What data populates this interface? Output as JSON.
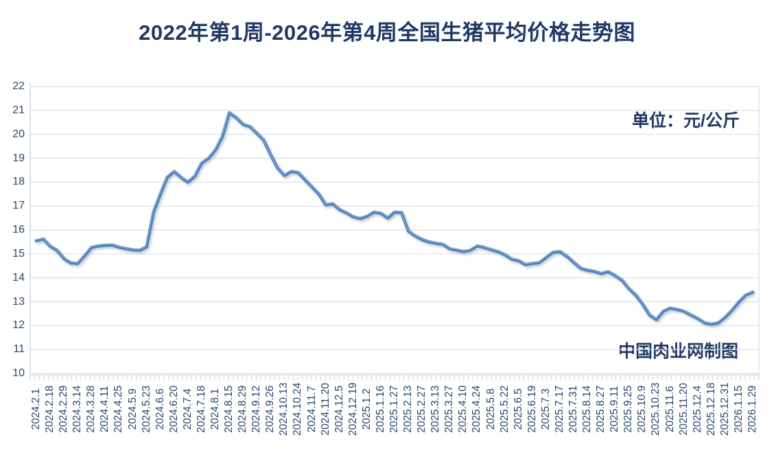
{
  "page": {
    "title": "2022年第1周-2026年第4周全国生猪平均价格走势图",
    "unit_label": "单位：元/公斤",
    "credit_label": "中国肉业网制图"
  },
  "chart_data": {
    "type": "line",
    "title": "2022年第1周-2026年第4周全国生猪平均价格走势图",
    "xlabel": "",
    "ylabel": "元/公斤",
    "ylim": [
      10,
      22
    ],
    "y_ticks": [
      10,
      11,
      12,
      13,
      14,
      15,
      16,
      17,
      18,
      19,
      20,
      21,
      22
    ],
    "grid": true,
    "legend": "none",
    "note": "Weekly data; x-axis labels are printed for every second data point, rotated 90°.",
    "x_tick_labels": [
      "2024.2.1",
      "2024.2.18",
      "2024.2.29",
      "2024.3.14",
      "2024.3.28",
      "2024.4.11",
      "2024.4.25",
      "2024.5.9",
      "2024.5.23",
      "2024.6.6",
      "2024.6.20",
      "2024.7.4",
      "2024.7.18",
      "2024.8.1",
      "2024.8.15",
      "2024.8.29",
      "2024.9.12",
      "2024.9.26",
      "2024.10.13",
      "2024.10.24",
      "2024.11.7",
      "2024.11.20",
      "2024.12.5",
      "2024.12.19",
      "2025.1.2",
      "2025.1.16",
      "2025.1.27",
      "2025.2.13",
      "2025.2.27",
      "2025.3.13",
      "2025.3.27",
      "2025.4.10",
      "2025.4.24",
      "2025.5.8",
      "2025.5.22",
      "2025.6.5",
      "2025.6.19",
      "2025.7.3",
      "2025.7.17",
      "2025.7.31",
      "2025.8.14",
      "2025.8.27",
      "2025.9.11",
      "2025.9.25",
      "2025.10.9",
      "2025.10.23",
      "2025.11.6",
      "2025.11.20",
      "2025.12.4",
      "2025.12.18",
      "2025.12.31",
      "2026.1.15",
      "2026.1.29"
    ],
    "series": [
      {
        "name": "全国生猪平均价格",
        "values": [
          15.55,
          15.62,
          15.32,
          15.15,
          14.8,
          14.62,
          14.6,
          14.92,
          15.27,
          15.33,
          15.36,
          15.37,
          15.28,
          15.22,
          15.17,
          15.15,
          15.3,
          16.75,
          17.5,
          18.2,
          18.45,
          18.2,
          18.0,
          18.25,
          18.8,
          19.0,
          19.35,
          19.9,
          20.9,
          20.7,
          20.42,
          20.32,
          20.05,
          19.75,
          19.15,
          18.6,
          18.28,
          18.45,
          18.4,
          18.1,
          17.8,
          17.5,
          17.05,
          17.1,
          16.85,
          16.72,
          16.55,
          16.48,
          16.57,
          16.75,
          16.7,
          16.5,
          16.75,
          16.73,
          15.95,
          15.75,
          15.6,
          15.5,
          15.45,
          15.4,
          15.22,
          15.16,
          15.1,
          15.15,
          15.33,
          15.27,
          15.18,
          15.1,
          14.97,
          14.78,
          14.72,
          14.55,
          14.6,
          14.63,
          14.85,
          15.07,
          15.1,
          14.9,
          14.65,
          14.4,
          14.32,
          14.27,
          14.18,
          14.26,
          14.1,
          13.9,
          13.55,
          13.28,
          12.9,
          12.45,
          12.25,
          12.6,
          12.73,
          12.68,
          12.6,
          12.45,
          12.3,
          12.12,
          12.06,
          12.12,
          12.35,
          12.65,
          13.0,
          13.28,
          13.4
        ]
      }
    ],
    "colors": {
      "line": "#4c80bd",
      "line_highlight": "#86abd9",
      "grid": "#d8dfe8",
      "axis": "#c9d1da",
      "title_text": "#1f3864",
      "axis_text": "#29466d"
    }
  }
}
